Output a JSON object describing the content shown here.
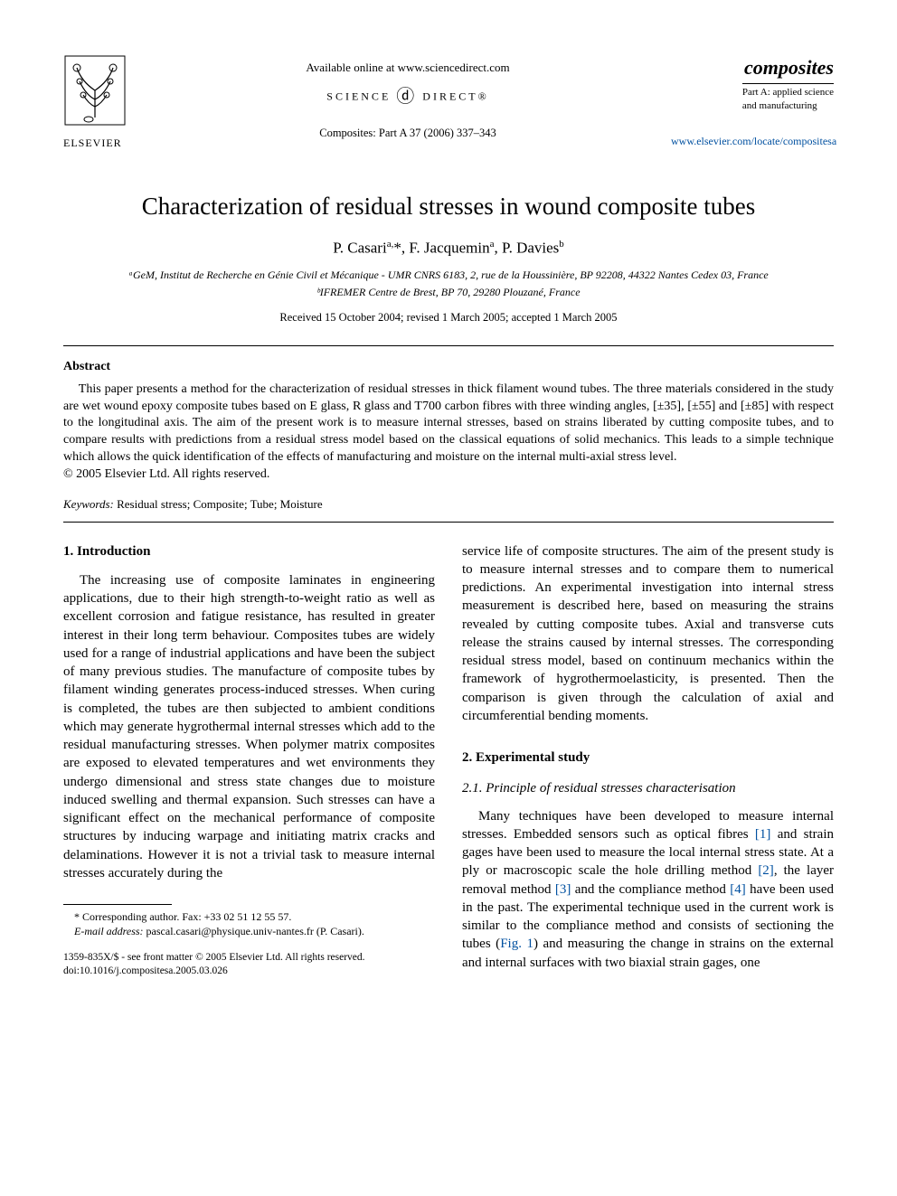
{
  "header": {
    "available_text": "Available online at www.sciencedirect.com",
    "sd_left": "SCIENCE",
    "sd_right": "DIRECT®",
    "journal_ref": "Composites: Part A 37 (2006) 337–343",
    "publisher_name": "ELSEVIER",
    "journal_logo_title": "composites",
    "journal_logo_sub": "Part A: applied science\nand manufacturing",
    "journal_url": "www.elsevier.com/locate/compositesa"
  },
  "title": "Characterization of residual stresses in wound composite tubes",
  "authors": "P. Casari<sup>a,</sup>*, F. Jacquemin<sup>a</sup>, P. Davies<sup>b</sup>",
  "affiliations": [
    "ᵃGeM, Institut de Recherche en Génie Civil et Mécanique - UMR CNRS 6183, 2, rue de la Houssinière, BP 92208, 44322 Nantes Cedex 03, France",
    "ᵇIFREMER Centre de Brest, BP 70, 29280 Plouzané, France"
  ],
  "dates": "Received 15 October 2004; revised 1 March 2005; accepted 1 March 2005",
  "abstract": {
    "heading": "Abstract",
    "body": "This paper presents a method for the characterization of residual stresses in thick filament wound tubes. The three materials considered in the study are wet wound epoxy composite tubes based on E glass, R glass and T700 carbon fibres with three winding angles, [±35], [±55] and [±85] with respect to the longitudinal axis. The aim of the present work is to measure internal stresses, based on strains liberated by cutting composite tubes, and to compare results with predictions from a residual stress model based on the classical equations of solid mechanics. This leads to a simple technique which allows the quick identification of the effects of manufacturing and moisture on the internal multi-axial stress level.",
    "copyright": "© 2005 Elsevier Ltd. All rights reserved."
  },
  "keywords": {
    "label": "Keywords:",
    "text": "Residual stress; Composite; Tube; Moisture"
  },
  "sections": {
    "intro_head": "1. Introduction",
    "intro_body": "The increasing use of composite laminates in engineering applications, due to their high strength-to-weight ratio as well as excellent corrosion and fatigue resistance, has resulted in greater interest in their long term behaviour. Composites tubes are widely used for a range of industrial applications and have been the subject of many previous studies. The manufacture of composite tubes by filament winding generates process-induced stresses. When curing is completed, the tubes are then subjected to ambient conditions which may generate hygrothermal internal stresses which add to the residual manufacturing stresses. When polymer matrix composites are exposed to elevated temperatures and wet environments they undergo dimensional and stress state changes due to moisture induced swelling and thermal expansion. Such stresses can have a significant effect on the mechanical performance of composite structures by inducing warpage and initiating matrix cracks and delaminations. However it is not a trivial task to measure internal stresses accurately during the",
    "intro_cont": "service life of composite structures. The aim of the present study is to measure internal stresses and to compare them to numerical predictions. An experimental investigation into internal stress measurement is described here, based on measuring the strains revealed by cutting composite tubes. Axial and transverse cuts release the strains caused by internal stresses. The corresponding residual stress model, based on continuum mechanics within the framework of hygrothermoelasticity, is presented. Then the comparison is given through the calculation of axial and circumferential bending moments.",
    "exp_head": "2. Experimental study",
    "sub_head": "2.1. Principle of residual stresses characterisation",
    "exp_body_pre": "Many techniques have been developed to measure internal stresses. Embedded sensors such as optical fibres ",
    "ref1": "[1]",
    "exp_body_mid1": " and strain gages have been used to measure the local internal stress state. At a ply or macroscopic scale the hole drilling method ",
    "ref2": "[2]",
    "exp_body_mid2": ", the layer removal method ",
    "ref3": "[3]",
    "exp_body_mid3": " and the compliance method ",
    "ref4": "[4]",
    "exp_body_mid4": " have been used in the past. The experimental technique used in the current work is similar to the compliance method and consists of sectioning the tubes (",
    "fig1": "Fig. 1",
    "exp_body_end": ") and measuring the change in strains on the external and internal surfaces with two biaxial strain gages, one"
  },
  "footnote": {
    "corr": "* Corresponding author. Fax: +33 02 51 12 55 57.",
    "email_label": "E-mail address:",
    "email": "pascal.casari@physique.univ-nantes.fr (P. Casari)."
  },
  "doi": {
    "line1": "1359-835X/$ - see front matter © 2005 Elsevier Ltd. All rights reserved.",
    "line2": "doi:10.1016/j.compositesa.2005.03.026"
  },
  "colors": {
    "link": "#0050a0",
    "text": "#000000",
    "background": "#ffffff"
  },
  "typography": {
    "body_family": "Times New Roman",
    "body_size_pt": 11,
    "title_size_pt": 20,
    "author_size_pt": 13
  }
}
